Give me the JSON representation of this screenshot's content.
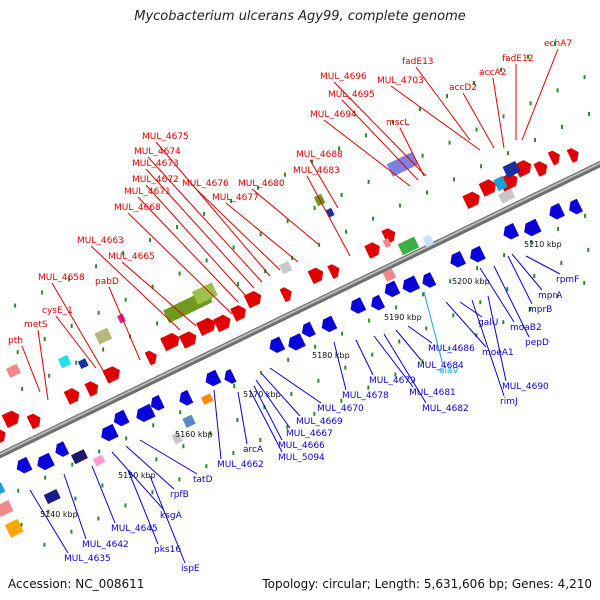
{
  "title": "Mycobacterium ulcerans Agy99, complete genome",
  "footer": {
    "accession": "Accession: NC_008611",
    "summary": "Topology: circular; Length: 5,631,606 bp; Genes: 4,210"
  },
  "colors": {
    "forward": "#e00000",
    "reverse": "#0a00d8",
    "rna": "#1aa0d8",
    "backbone": "#8a8a8a",
    "tick": "#2a8a2a"
  },
  "scale_ticks": [
    "5140 kbp",
    "5150 kbp",
    "5160 kbp",
    "5170 kbp",
    "5180 kbp",
    "5190 kbp",
    "5200 kbp",
    "5210 kbp"
  ],
  "labels_forward": [
    "pth",
    "metS",
    "cysE_1",
    "MUL_4658",
    "pabD",
    "MUL_4663",
    "MUL_4665",
    "MUL_4668",
    "MUL_4671",
    "MUL_4672",
    "MUL_4673",
    "MUL_4674",
    "MUL_4675",
    "MUL_4676",
    "MUL_4677",
    "MUL_4680",
    "MUL_4683",
    "MUL_4688",
    "MUL_4694",
    "MUL_4695",
    "MUL_4696",
    "mscL",
    "MUL_4703",
    "fadE13",
    "accD2",
    "accA2",
    "fadE12",
    "echA7"
  ],
  "labels_reverse": [
    "MUL_4635",
    "ispE",
    "pks16",
    "MUL_4642",
    "MUL_4645",
    "ksgA",
    "rpfB",
    "tatD",
    "MUL_4662",
    "arcA",
    "MUL_5094",
    "MUL_4666",
    "MUL_4667",
    "MUL_4669",
    "MUL_4670",
    "MUL_4678",
    "MUL_4679",
    "MUL_4681",
    "MUL_4682",
    "MUL_4684",
    "MUL_4686",
    "alaV",
    "moeA1",
    "galU",
    "rimJ",
    "MUL_4690",
    "moaB2",
    "pepD",
    "mprB",
    "mprA",
    "rpmF"
  ]
}
